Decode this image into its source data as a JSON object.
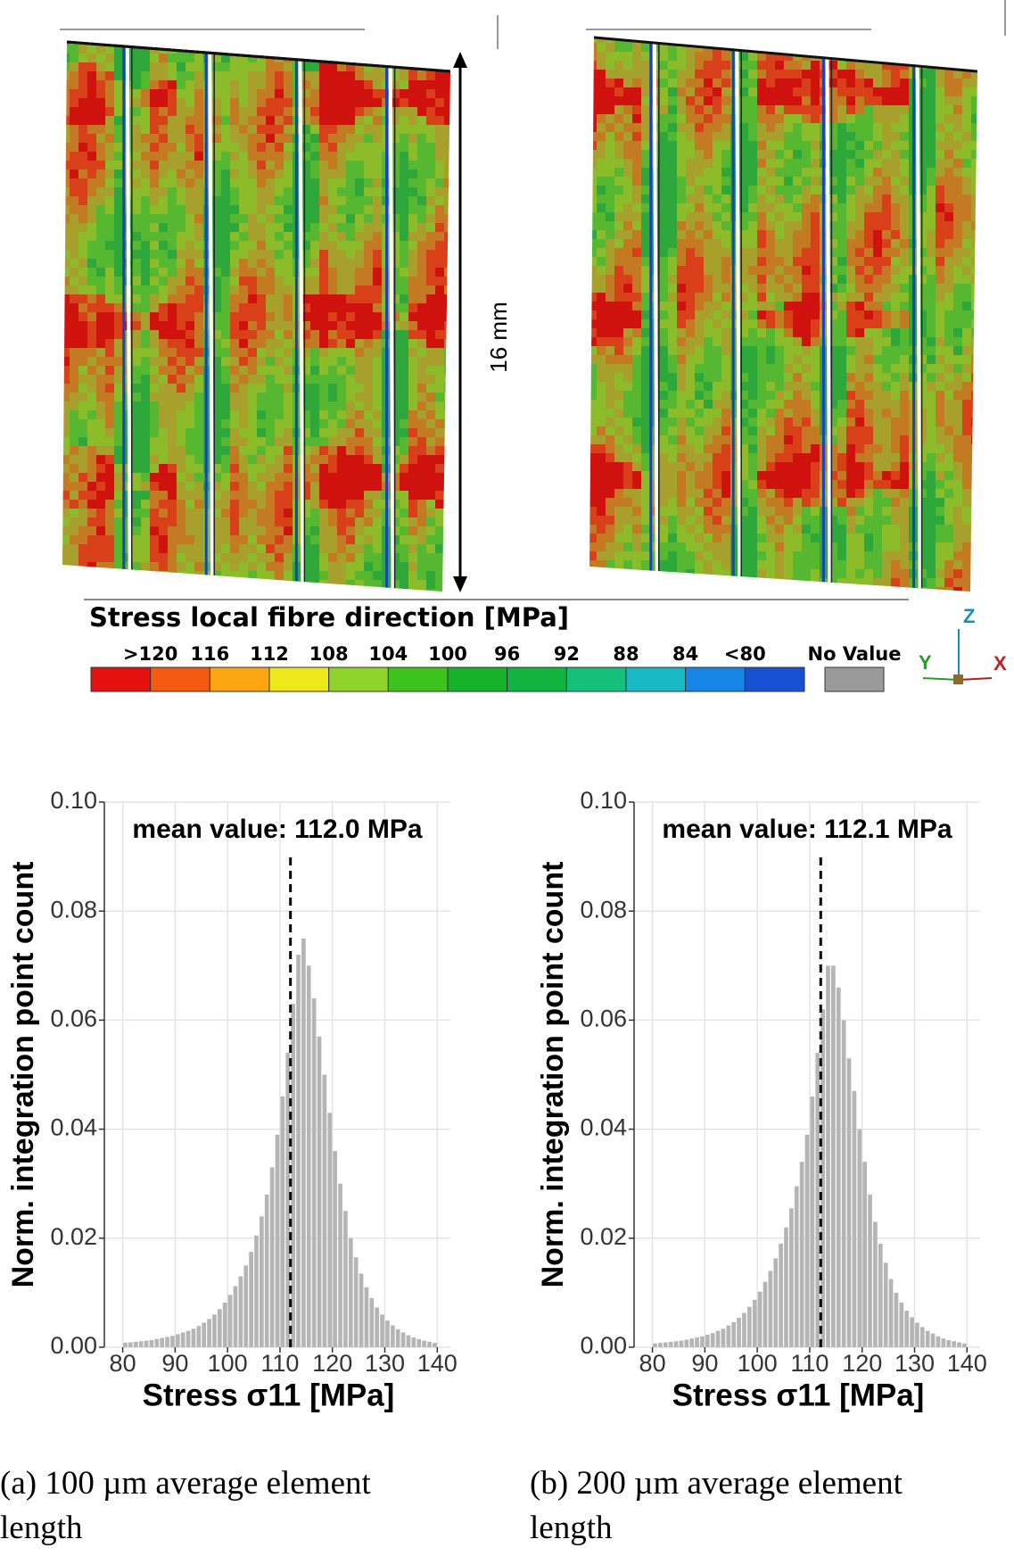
{
  "scale_label": "16 mm",
  "colorbar": {
    "title": "Stress local fibre direction [MPa]",
    "labels": [
      ">120",
      "116",
      "112",
      "108",
      "104",
      "100",
      "96",
      "92",
      "88",
      "84",
      "<80"
    ],
    "colors": [
      "#e3120f",
      "#f55a12",
      "#fca614",
      "#ece81a",
      "#8ed42a",
      "#3ec21e",
      "#16b22a",
      "#12b440",
      "#14c07a",
      "#18b8c4",
      "#1686e6",
      "#1850d2",
      "#1414b8"
    ],
    "no_value_label": "No Value",
    "no_value_color": "#9a9a9a"
  },
  "axes_triad": {
    "z": "Z",
    "y": "Y",
    "x": "X"
  },
  "chart_data": [
    {
      "type": "histogram",
      "annotation": "mean value: 112.0 MPa",
      "mean_line": 112.0,
      "x_label": "Stress σ11 [MPa]",
      "y_label": "Norm. integration point count",
      "color": "#b5b5b5",
      "grid": true,
      "bins": [
        80,
        81,
        82,
        83,
        84,
        85,
        86,
        87,
        88,
        89,
        90,
        91,
        92,
        93,
        94,
        95,
        96,
        97,
        98,
        99,
        100,
        101,
        102,
        103,
        104,
        105,
        106,
        107,
        108,
        109,
        110,
        111,
        112,
        113,
        114,
        115,
        116,
        117,
        118,
        119,
        120,
        121,
        122,
        123,
        124,
        125,
        126,
        127,
        128,
        129,
        130,
        131,
        132,
        133,
        134,
        135,
        136,
        137,
        138,
        139,
        140
      ],
      "values": [
        0.0008,
        0.0009,
        0.001,
        0.0011,
        0.0012,
        0.0013,
        0.0015,
        0.0017,
        0.0019,
        0.0021,
        0.0024,
        0.0027,
        0.003,
        0.0034,
        0.0039,
        0.0045,
        0.0052,
        0.006,
        0.007,
        0.0082,
        0.0096,
        0.0112,
        0.013,
        0.015,
        0.0175,
        0.0205,
        0.024,
        0.028,
        0.033,
        0.039,
        0.046,
        0.054,
        0.063,
        0.072,
        0.075,
        0.07,
        0.064,
        0.057,
        0.05,
        0.043,
        0.036,
        0.03,
        0.025,
        0.02,
        0.0165,
        0.0135,
        0.011,
        0.009,
        0.0073,
        0.006,
        0.0049,
        0.004,
        0.0033,
        0.0027,
        0.0022,
        0.0018,
        0.0015,
        0.0012,
        0.001,
        0.0008
      ],
      "xlim": [
        76.5,
        142.5
      ],
      "xticks": [
        80,
        90,
        100,
        110,
        120,
        130,
        140
      ],
      "ylim": [
        0,
        0.1
      ],
      "yticks": [
        {
          "value": 0,
          "label": "0.00"
        },
        {
          "value": 0.02,
          "label": "0.02"
        },
        {
          "value": 0.04,
          "label": "0.04"
        },
        {
          "value": 0.06,
          "label": "0.06"
        },
        {
          "value": 0.08,
          "label": "0.08"
        },
        {
          "value": 0.1,
          "label": "0.10"
        }
      ],
      "caption": "(a)  100 µm  average  element length"
    },
    {
      "type": "histogram",
      "annotation": "mean value: 112.1 MPa",
      "mean_line": 112.1,
      "x_label": "Stress σ11 [MPa]",
      "y_label": "Norm. integration point count",
      "color": "#b5b5b5",
      "grid": true,
      "bins": [
        80,
        81,
        82,
        83,
        84,
        85,
        86,
        87,
        88,
        89,
        90,
        91,
        92,
        93,
        94,
        95,
        96,
        97,
        98,
        99,
        100,
        101,
        102,
        103,
        104,
        105,
        106,
        107,
        108,
        109,
        110,
        111,
        112,
        113,
        114,
        115,
        116,
        117,
        118,
        119,
        120,
        121,
        122,
        123,
        124,
        125,
        126,
        127,
        128,
        129,
        130,
        131,
        132,
        133,
        134,
        135,
        136,
        137,
        138,
        139,
        140
      ],
      "values": [
        0.0007,
        0.0008,
        0.0009,
        0.001,
        0.0011,
        0.0012,
        0.0014,
        0.0016,
        0.0018,
        0.002,
        0.0023,
        0.0026,
        0.003,
        0.0034,
        0.004,
        0.0046,
        0.0054,
        0.0063,
        0.0074,
        0.0087,
        0.0102,
        0.012,
        0.014,
        0.0163,
        0.019,
        0.022,
        0.0255,
        0.0295,
        0.034,
        0.039,
        0.046,
        0.054,
        0.062,
        0.07,
        0.07,
        0.066,
        0.06,
        0.053,
        0.047,
        0.04,
        0.034,
        0.028,
        0.023,
        0.019,
        0.0155,
        0.0125,
        0.01,
        0.0082,
        0.0067,
        0.0055,
        0.0045,
        0.0037,
        0.003,
        0.0025,
        0.002,
        0.0016,
        0.0013,
        0.0011,
        0.0009,
        0.0007
      ],
      "xlim": [
        76.5,
        142.5
      ],
      "xticks": [
        80,
        90,
        100,
        110,
        120,
        130,
        140
      ],
      "ylim": [
        0,
        0.1
      ],
      "yticks": [
        {
          "value": 0,
          "label": "0.00"
        },
        {
          "value": 0.02,
          "label": "0.02"
        },
        {
          "value": 0.04,
          "label": "0.04"
        },
        {
          "value": 0.06,
          "label": "0.06"
        },
        {
          "value": 0.08,
          "label": "0.08"
        },
        {
          "value": 0.1,
          "label": "0.10"
        }
      ],
      "caption": "(b)  200 µm  average  element length"
    }
  ]
}
